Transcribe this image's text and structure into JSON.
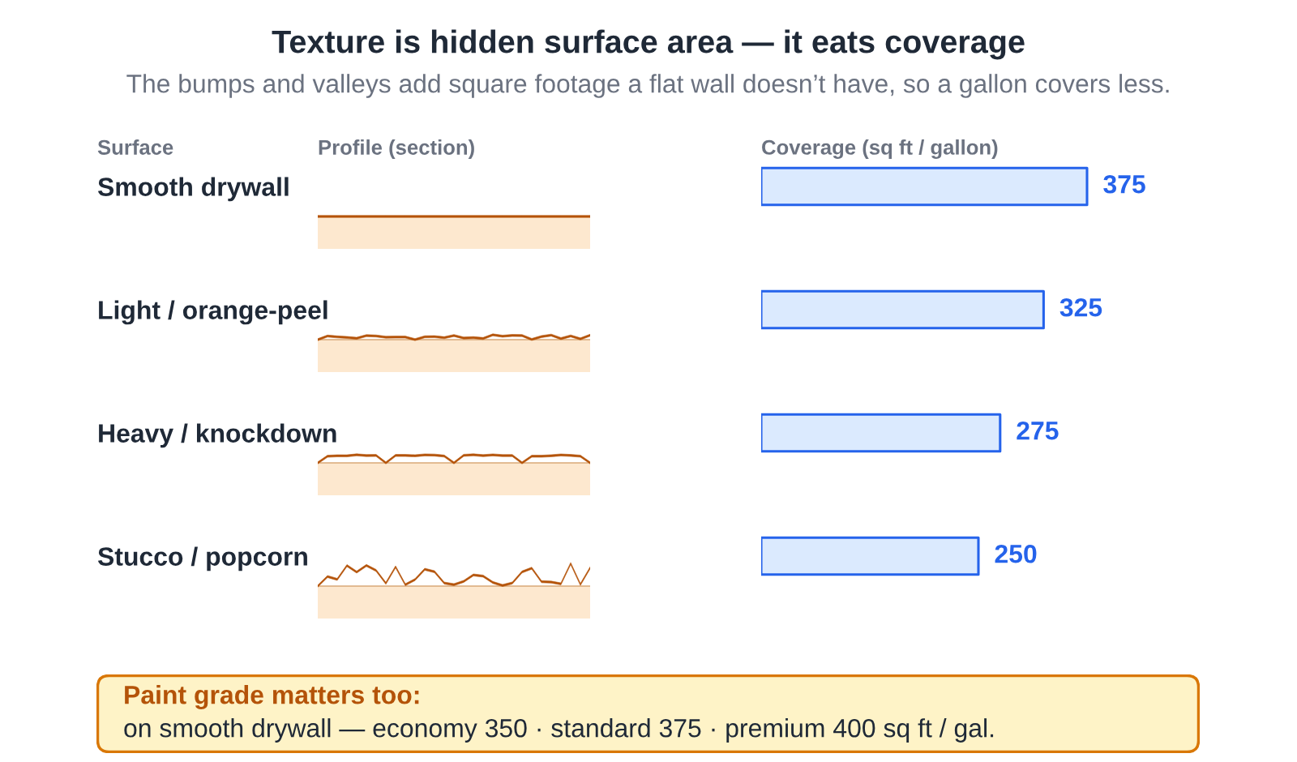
{
  "chart_data": {
    "type": "bar",
    "orientation": "horizontal",
    "title": "Texture is hidden surface area — it eats coverage",
    "subtitle": "The bumps and valleys add square footage a flat wall doesn’t have, so a gallon covers less.",
    "ylabel": "Surface",
    "xlabel": "Coverage (sq ft / gallon)",
    "categories": [
      "Smooth drywall",
      "Light / orange-peel",
      "Heavy / knockdown",
      "Stucco / popcorn"
    ],
    "values": [
      375,
      325,
      275,
      250
    ],
    "color": "#dbeafe",
    "data_labels": true,
    "tick_labels": "y",
    "annotations": [
      "Profile (section)",
      "Paint grade matters too:",
      "on smooth drywall — economy 350 · standard 375 · premium 400 sq ft / gal."
    ]
  }
}
